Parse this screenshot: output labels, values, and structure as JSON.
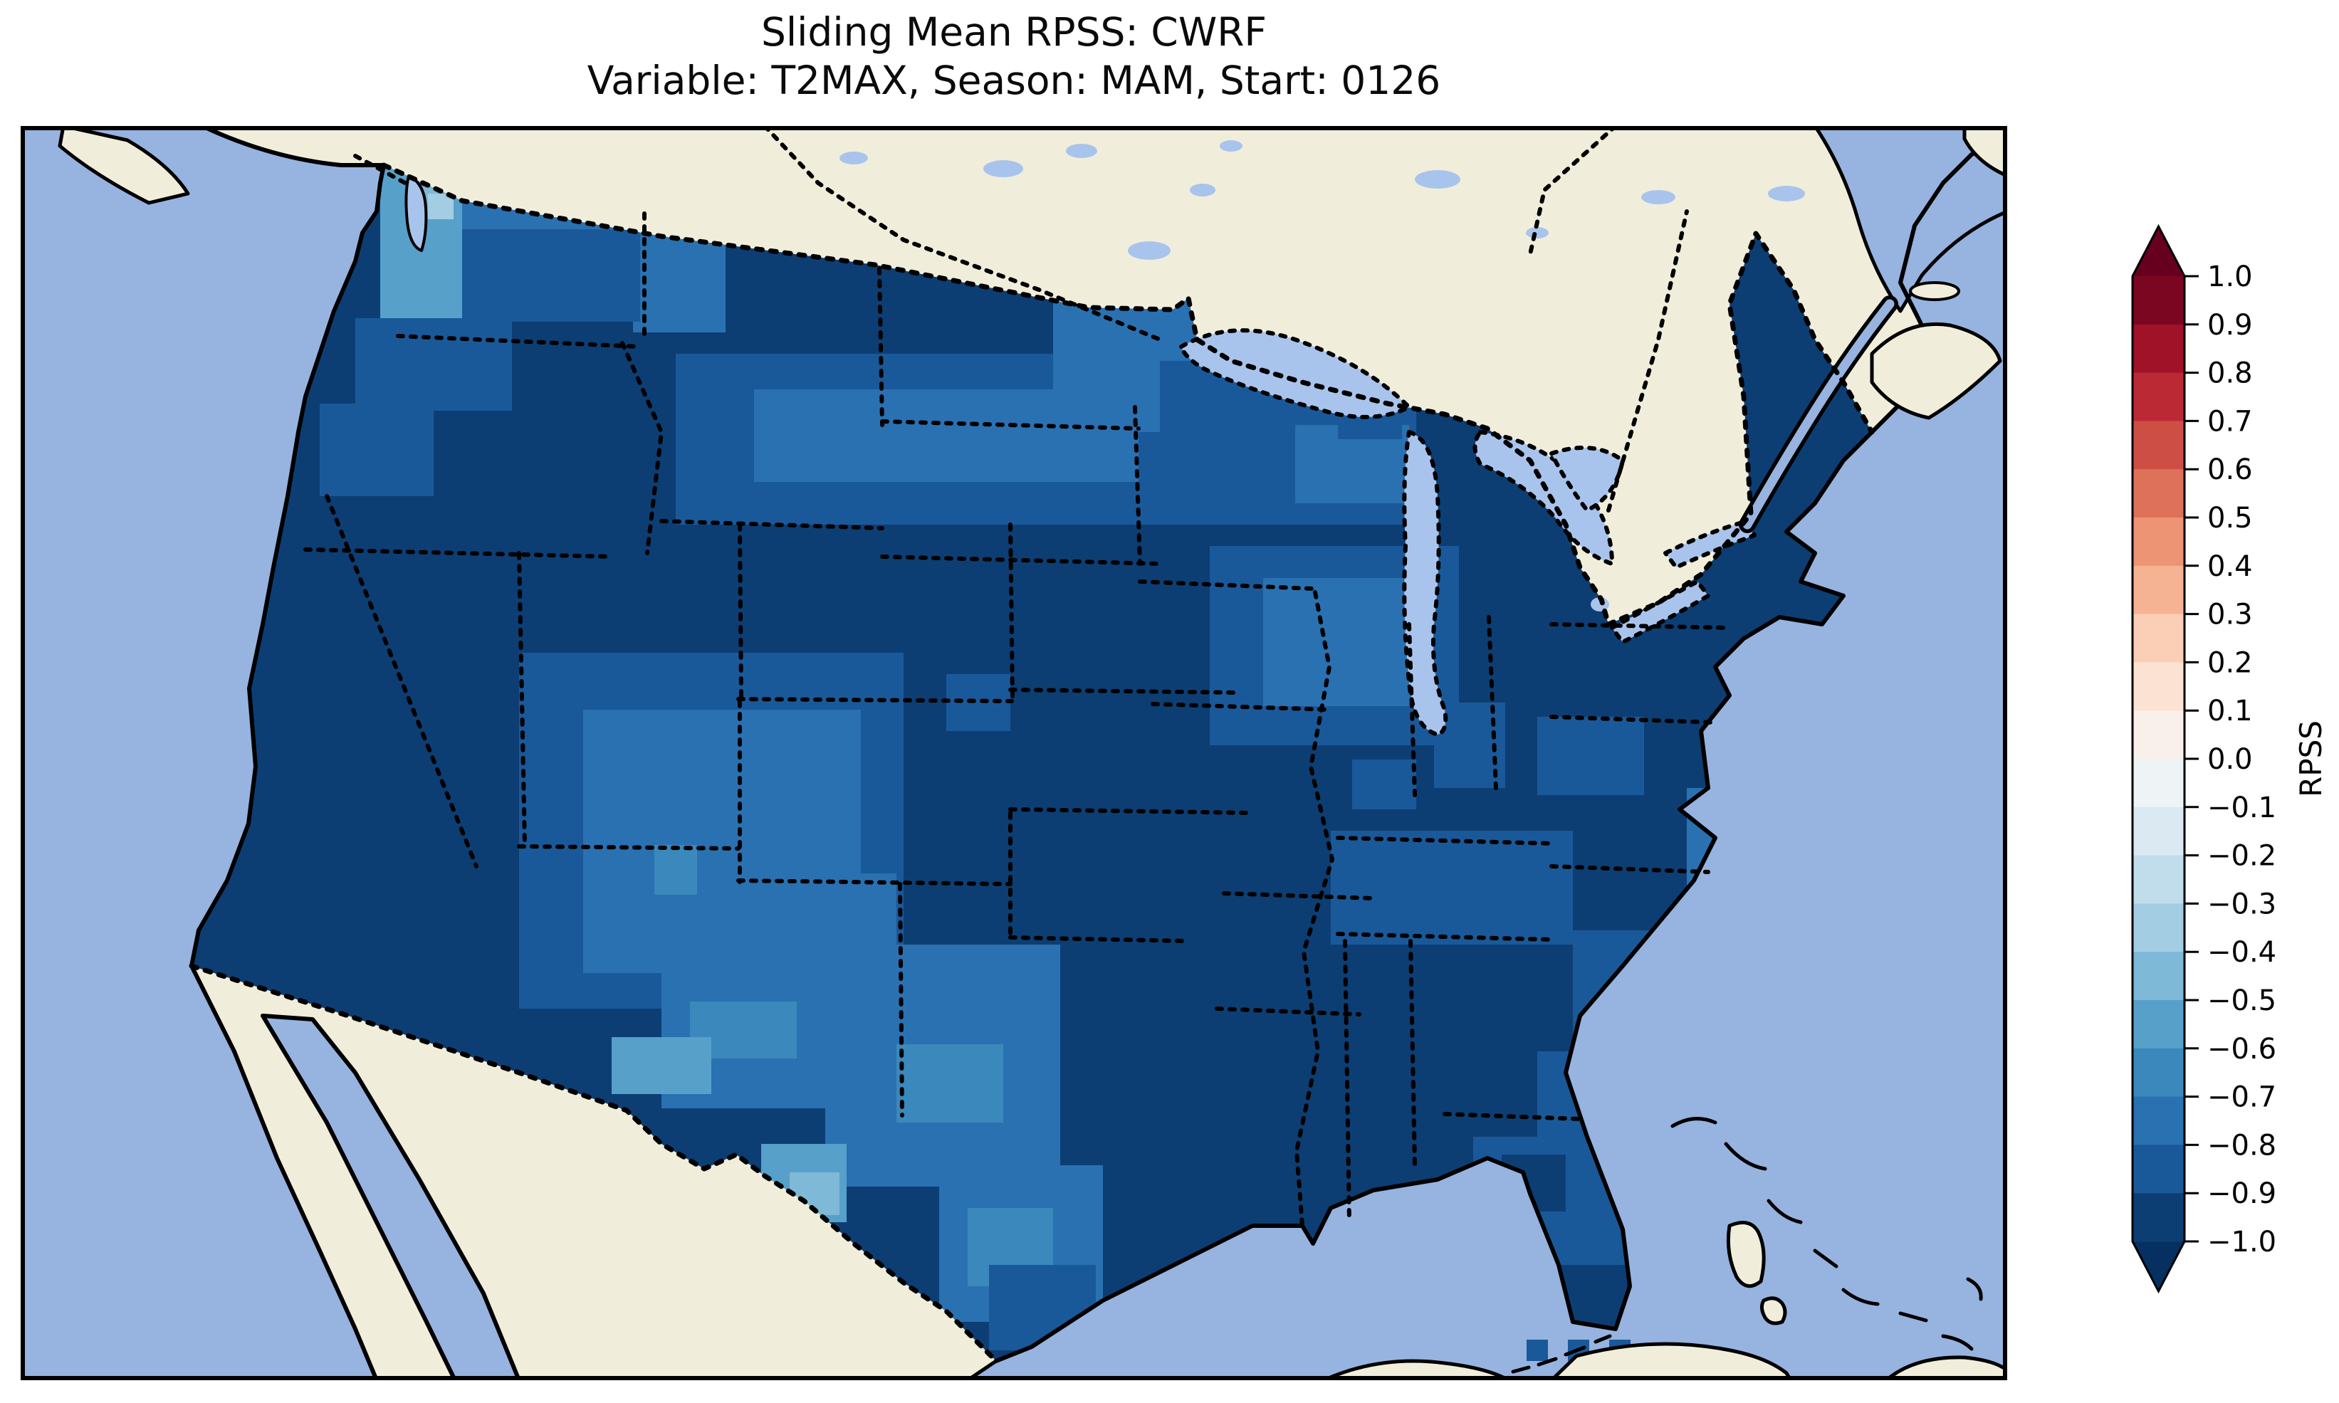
{
  "figure": {
    "title_line1": "Sliding Mean RPSS: CWRF",
    "title_line2": "Variable: T2MAX, Season: MAM, Start: 0126"
  },
  "map": {
    "ocean_color": "#97b3e0",
    "land_color": "#f0eedb",
    "lake_color": "#a9c4ec",
    "coastline_color": "#000000",
    "border_style": "dotted",
    "shown_area": "Continental United States with southern Canada, Mexico, Cuba and the Bahamas"
  },
  "chart_data": {
    "type": "heatmap",
    "title": "Sliding Mean RPSS: CWRF",
    "subtitle": "Variable: T2MAX, Season: MAM, Start: 0126",
    "model": "CWRF",
    "variable": "T2MAX",
    "season": "MAM",
    "start": "0126",
    "colorbar": {
      "label": "RPSS",
      "min": -1.0,
      "max": 1.0,
      "step": 0.1,
      "extend": "both",
      "tick_labels": [
        "1.0",
        "0.9",
        "0.8",
        "0.7",
        "0.6",
        "0.5",
        "0.4",
        "0.3",
        "0.2",
        "0.1",
        "0.0",
        "−0.1",
        "−0.2",
        "−0.3",
        "−0.4",
        "−0.5",
        "−0.6",
        "−0.7",
        "−0.8",
        "−0.9",
        "−1.0"
      ],
      "level_colors_top_to_bottom": [
        "#7a0622",
        "#9f1228",
        "#bb2a34",
        "#cd4e45",
        "#de715a",
        "#ed9475",
        "#f6b393",
        "#fbceb6",
        "#fce2d3",
        "#f9f0eb",
        "#eef3f5",
        "#dbeaf2",
        "#c1ddec",
        "#a2cde3",
        "#7eb9d7",
        "#57a0ca",
        "#3b88bd",
        "#2a71b2",
        "#1a5999",
        "#0c3e74"
      ],
      "over_color": "#67001f",
      "under_color": "#053061"
    },
    "field_base_value": -0.95,
    "regions": [
      {
        "name": "Western Washington coast",
        "approx_rpss": -0.55
      },
      {
        "name": "Puget Sound lowlands",
        "approx_rpss": -0.35
      },
      {
        "name": "Northern Washington / Idaho panhandle",
        "approx_rpss": -0.72
      },
      {
        "name": "Oregon, California and Great Basin",
        "approx_rpss": -0.95
      },
      {
        "name": "Montana high plains",
        "approx_rpss": -0.78
      },
      {
        "name": "North Dakota / western Minnesota",
        "approx_rpss": -0.72
      },
      {
        "name": "Central plains (Nebraska/Kansas/Oklahoma)",
        "approx_rpss": -0.95
      },
      {
        "name": "Iowa / northern Missouri / Illinois",
        "approx_rpss": -0.78
      },
      {
        "name": "Colorado Plateau / Four Corners",
        "approx_rpss": -0.78
      },
      {
        "name": "Southern Arizona border",
        "approx_rpss": -0.55
      },
      {
        "name": "West Texas",
        "approx_rpss": -0.72
      },
      {
        "name": "Big Bend Texas",
        "approx_rpss": -0.48
      },
      {
        "name": "Eastern Texas and Gulf Coast states",
        "approx_rpss": -0.95
      },
      {
        "name": "Tennessee Valley",
        "approx_rpss": -0.82
      },
      {
        "name": "Northeast / Mid-Atlantic",
        "approx_rpss": -0.97
      },
      {
        "name": "Carolina coast",
        "approx_rpss": -0.78
      },
      {
        "name": "Florida peninsula",
        "approx_rpss": -0.85
      }
    ],
    "cells": [
      [
        505,
        60,
        130,
        210,
        -0.55
      ],
      [
        540,
        85,
        45,
        45,
        -0.45
      ],
      [
        572,
        95,
        36,
        36,
        -0.35
      ],
      [
        620,
        60,
        290,
        85,
        -0.72
      ],
      [
        860,
        120,
        130,
        170,
        -0.72
      ],
      [
        620,
        145,
        250,
        130,
        -0.85
      ],
      [
        470,
        270,
        220,
        130,
        -0.85
      ],
      [
        420,
        390,
        160,
        130,
        -0.85
      ],
      [
        920,
        320,
        740,
        240,
        -0.85
      ],
      [
        1030,
        370,
        540,
        130,
        -0.75
      ],
      [
        1450,
        240,
        330,
        190,
        -0.75
      ],
      [
        1520,
        230,
        140,
        80,
        -0.72
      ],
      [
        1600,
        330,
        360,
        230,
        -0.85
      ],
      [
        1790,
        420,
        160,
        110,
        -0.75
      ],
      [
        1850,
        370,
        90,
        70,
        -0.85
      ],
      [
        1670,
        590,
        350,
        280,
        -0.85
      ],
      [
        1745,
        635,
        230,
        180,
        -0.75
      ],
      [
        1985,
        810,
        100,
        120,
        -0.85
      ],
      [
        700,
        740,
        540,
        500,
        -0.85
      ],
      [
        790,
        820,
        390,
        370,
        -0.75
      ],
      [
        900,
        1050,
        330,
        330,
        -0.75
      ],
      [
        890,
        1010,
        60,
        70,
        -0.65
      ],
      [
        940,
        1230,
        150,
        80,
        -0.65
      ],
      [
        830,
        1280,
        140,
        80,
        -0.55
      ],
      [
        1300,
        770,
        90,
        80,
        -0.85
      ],
      [
        1130,
        1150,
        330,
        340,
        -0.75
      ],
      [
        1230,
        1290,
        150,
        110,
        -0.65
      ],
      [
        1040,
        1430,
        120,
        110,
        -0.55
      ],
      [
        1080,
        1470,
        70,
        60,
        -0.45
      ],
      [
        1290,
        1460,
        230,
        220,
        -0.75
      ],
      [
        1330,
        1520,
        120,
        110,
        -0.65
      ],
      [
        1360,
        1600,
        150,
        120,
        -0.85
      ],
      [
        1840,
        990,
        340,
        160,
        -0.85
      ],
      [
        1870,
        890,
        90,
        70,
        -0.85
      ],
      [
        2130,
        830,
        150,
        110,
        -0.85
      ],
      [
        2180,
        1130,
        120,
        230,
        -0.85
      ],
      [
        2340,
        930,
        70,
        140,
        -0.75
      ],
      [
        2130,
        1300,
        80,
        130,
        -0.85
      ],
      [
        2040,
        1420,
        250,
        300,
        -0.85
      ],
      [
        2080,
        1445,
        90,
        80,
        -0.95
      ],
      [
        2160,
        1600,
        100,
        110,
        -0.95
      ]
    ],
    "offshore_cells": [
      [
        2115,
        1705,
        30,
        30,
        -0.85
      ],
      [
        2173,
        1705,
        30,
        30,
        -0.85
      ],
      [
        2231,
        1705,
        30,
        30,
        -0.85
      ]
    ]
  }
}
